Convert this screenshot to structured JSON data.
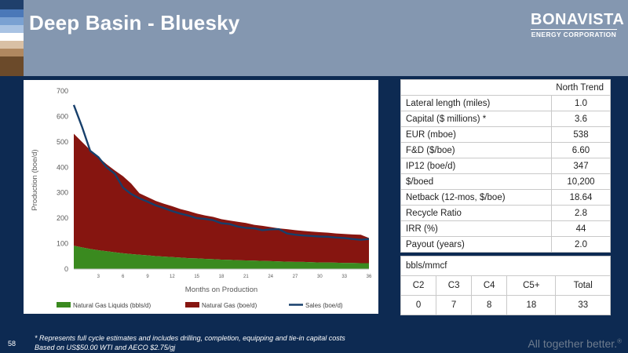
{
  "header": {
    "title": "Deep Basin - Bluesky"
  },
  "logo": {
    "name": "BONAVISTA",
    "subtitle": "ENERGY CORPORATION"
  },
  "colors": {
    "header_bg": "#8497b0",
    "page_bg": "#0d2a52",
    "ngl_fill": "#3a8a1f",
    "gas_fill": "#861510",
    "sales_line": "#173f6b",
    "stripes": [
      "#1f3f6b",
      "#4b78b8",
      "#7aa1d2",
      "#ffffff",
      "#c9ab8f",
      "#6b4a2a"
    ]
  },
  "chart_data": {
    "type": "area",
    "xlabel": "Months on Production",
    "ylabel": "Production (boe/d)",
    "ylim": [
      0,
      700
    ],
    "yticks": [
      0,
      100,
      200,
      300,
      400,
      500,
      600,
      700
    ],
    "xticks": [
      3,
      6,
      9,
      12,
      15,
      18,
      21,
      24,
      27,
      30,
      33,
      36
    ],
    "xlim": [
      0,
      36
    ],
    "grid": false,
    "legend_position": "bottom",
    "x": [
      0,
      1,
      2,
      3,
      4,
      5,
      6,
      7,
      8,
      9,
      10,
      11,
      12,
      13,
      14,
      15,
      16,
      17,
      18,
      19,
      20,
      21,
      22,
      23,
      24,
      25,
      26,
      27,
      28,
      29,
      30,
      31,
      32,
      33,
      34,
      35,
      36
    ],
    "series": [
      {
        "name": "Natural Gas Liquids (bbls/d)",
        "kind": "area",
        "values": [
          92,
          85,
          79,
          74,
          70,
          66,
          62,
          59,
          56,
          54,
          51,
          49,
          47,
          45,
          43,
          42,
          40,
          39,
          37,
          36,
          35,
          34,
          33,
          32,
          31,
          30,
          29,
          28,
          28,
          27,
          26,
          26,
          25,
          24,
          24,
          23,
          23
        ]
      },
      {
        "name": "Natural Gas (boe/d)",
        "kind": "area",
        "values": [
          532,
          500,
          468,
          440,
          412,
          388,
          365,
          336,
          298,
          283,
          268,
          257,
          247,
          236,
          228,
          218,
          211,
          205,
          196,
          191,
          186,
          181,
          174,
          170,
          165,
          160,
          157,
          153,
          150,
          147,
          145,
          143,
          140,
          138,
          136,
          135,
          122
        ]
      },
      {
        "name": "Sales (boe/d)",
        "kind": "line",
        "values": [
          645,
          560,
          465,
          440,
          400,
          375,
          320,
          295,
          278,
          265,
          250,
          240,
          228,
          218,
          210,
          200,
          197,
          192,
          180,
          177,
          167,
          162,
          160,
          153,
          156,
          157,
          140,
          135,
          132,
          130,
          128,
          127,
          124,
          122,
          118,
          115,
          118
        ]
      }
    ]
  },
  "table1": {
    "header": "North Trend",
    "rows": [
      {
        "label": "Lateral length (miles)",
        "value": "1.0"
      },
      {
        "label": "Capital ($ millions) *",
        "value": "3.6"
      },
      {
        "label": "EUR (mboe)",
        "value": "538"
      },
      {
        "label": "F&D ($/boe)",
        "value": "6.60"
      },
      {
        "label": "IP12 (boe/d)",
        "value": "347"
      },
      {
        "label": "$/boed",
        "value": "10,200"
      },
      {
        "label": "Netback (12-mos, $/boe)",
        "value": "18.64"
      },
      {
        "label": "Recycle Ratio",
        "value": "2.8"
      },
      {
        "label": "IRR (%)",
        "value": "44"
      },
      {
        "label": "Payout (years)",
        "value": "2.0"
      }
    ]
  },
  "table2": {
    "title": "bbls/mmcf",
    "headers": [
      "C2",
      "C3",
      "C4",
      "C5+",
      "Total"
    ],
    "values": [
      "0",
      "7",
      "8",
      "18",
      "33"
    ]
  },
  "footer": {
    "page_number": "58",
    "footnote_line1": "* Represents full cycle estimates and includes drilling, completion, equipping and tie-in capital costs",
    "footnote_line2": "Based on US$50.00 WTI and AECO $2.75/gj",
    "tagline": "All together better.",
    "tagline_mark": "®"
  }
}
